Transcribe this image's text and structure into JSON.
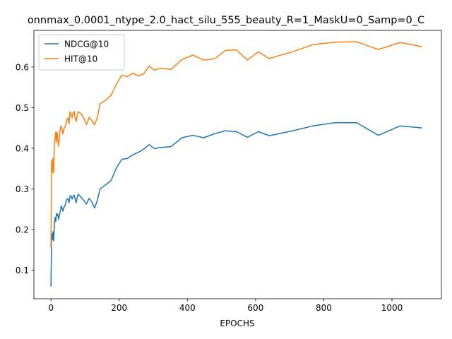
{
  "chart_data": {
    "type": "line",
    "title": "onnmax_0.0001_ntype_2.0_hact_silu_555_beauty_R=1_MaskU=0_Samp=0_C",
    "xlabel": "EPOCHS",
    "ylabel": "",
    "xlim": [
      -50,
      1145
    ],
    "ylim": [
      0.03,
      0.69
    ],
    "xticks": [
      0,
      200,
      400,
      600,
      800,
      1000
    ],
    "yticks": [
      0.1,
      0.2,
      0.3,
      0.4,
      0.5,
      0.6
    ],
    "grid": false,
    "legend_position": "top-left",
    "series": [
      {
        "name": "NDCG@10",
        "color": "#1f77b4",
        "x": [
          0,
          2,
          4,
          6,
          8,
          10,
          12,
          14,
          16,
          18,
          20,
          22,
          24,
          26,
          28,
          30,
          32,
          35,
          38,
          41,
          44,
          47,
          50,
          53,
          56,
          59,
          62,
          65,
          68,
          71,
          74,
          77,
          80,
          88,
          96,
          104,
          112,
          120,
          128,
          136,
          144,
          160,
          176,
          192,
          208,
          224,
          240,
          256,
          272,
          288,
          304,
          320,
          352,
          384,
          416,
          448,
          480,
          512,
          544,
          576,
          608,
          640,
          704,
          768,
          832,
          896,
          960,
          1024,
          1088
        ],
        "y": [
          0.06,
          0.19,
          0.175,
          0.195,
          0.172,
          0.21,
          0.23,
          0.22,
          0.24,
          0.235,
          0.238,
          0.225,
          0.232,
          0.24,
          0.248,
          0.258,
          0.255,
          0.245,
          0.255,
          0.258,
          0.268,
          0.275,
          0.276,
          0.266,
          0.283,
          0.283,
          0.275,
          0.282,
          0.285,
          0.275,
          0.266,
          0.28,
          0.287,
          0.28,
          0.272,
          0.263,
          0.277,
          0.268,
          0.253,
          0.272,
          0.3,
          0.31,
          0.32,
          0.352,
          0.373,
          0.375,
          0.384,
          0.39,
          0.398,
          0.409,
          0.399,
          0.402,
          0.404,
          0.426,
          0.432,
          0.426,
          0.436,
          0.443,
          0.441,
          0.427,
          0.441,
          0.431,
          0.442,
          0.455,
          0.463,
          0.463,
          0.432,
          0.455,
          0.45
        ]
      },
      {
        "name": "HIT@10",
        "color": "#ff7f0e",
        "x": [
          0,
          2,
          4,
          6,
          8,
          10,
          12,
          14,
          16,
          18,
          20,
          22,
          24,
          26,
          28,
          30,
          32,
          35,
          38,
          41,
          44,
          47,
          50,
          53,
          56,
          59,
          62,
          65,
          68,
          71,
          74,
          77,
          80,
          88,
          96,
          104,
          112,
          120,
          128,
          136,
          144,
          160,
          176,
          192,
          208,
          224,
          240,
          256,
          272,
          288,
          304,
          320,
          352,
          384,
          416,
          448,
          480,
          512,
          544,
          576,
          608,
          640,
          704,
          768,
          832,
          896,
          960,
          1024,
          1088
        ],
        "y": [
          0.155,
          0.37,
          0.34,
          0.375,
          0.34,
          0.41,
          0.42,
          0.44,
          0.415,
          0.44,
          0.425,
          0.405,
          0.42,
          0.44,
          0.45,
          0.455,
          0.45,
          0.435,
          0.448,
          0.452,
          0.46,
          0.47,
          0.475,
          0.46,
          0.49,
          0.485,
          0.475,
          0.488,
          0.49,
          0.475,
          0.466,
          0.48,
          0.49,
          0.485,
          0.475,
          0.458,
          0.476,
          0.468,
          0.458,
          0.475,
          0.51,
          0.518,
          0.53,
          0.558,
          0.58,
          0.576,
          0.585,
          0.578,
          0.583,
          0.602,
          0.592,
          0.597,
          0.594,
          0.618,
          0.629,
          0.617,
          0.62,
          0.641,
          0.642,
          0.617,
          0.637,
          0.621,
          0.636,
          0.655,
          0.661,
          0.662,
          0.643,
          0.66,
          0.65
        ]
      }
    ]
  }
}
